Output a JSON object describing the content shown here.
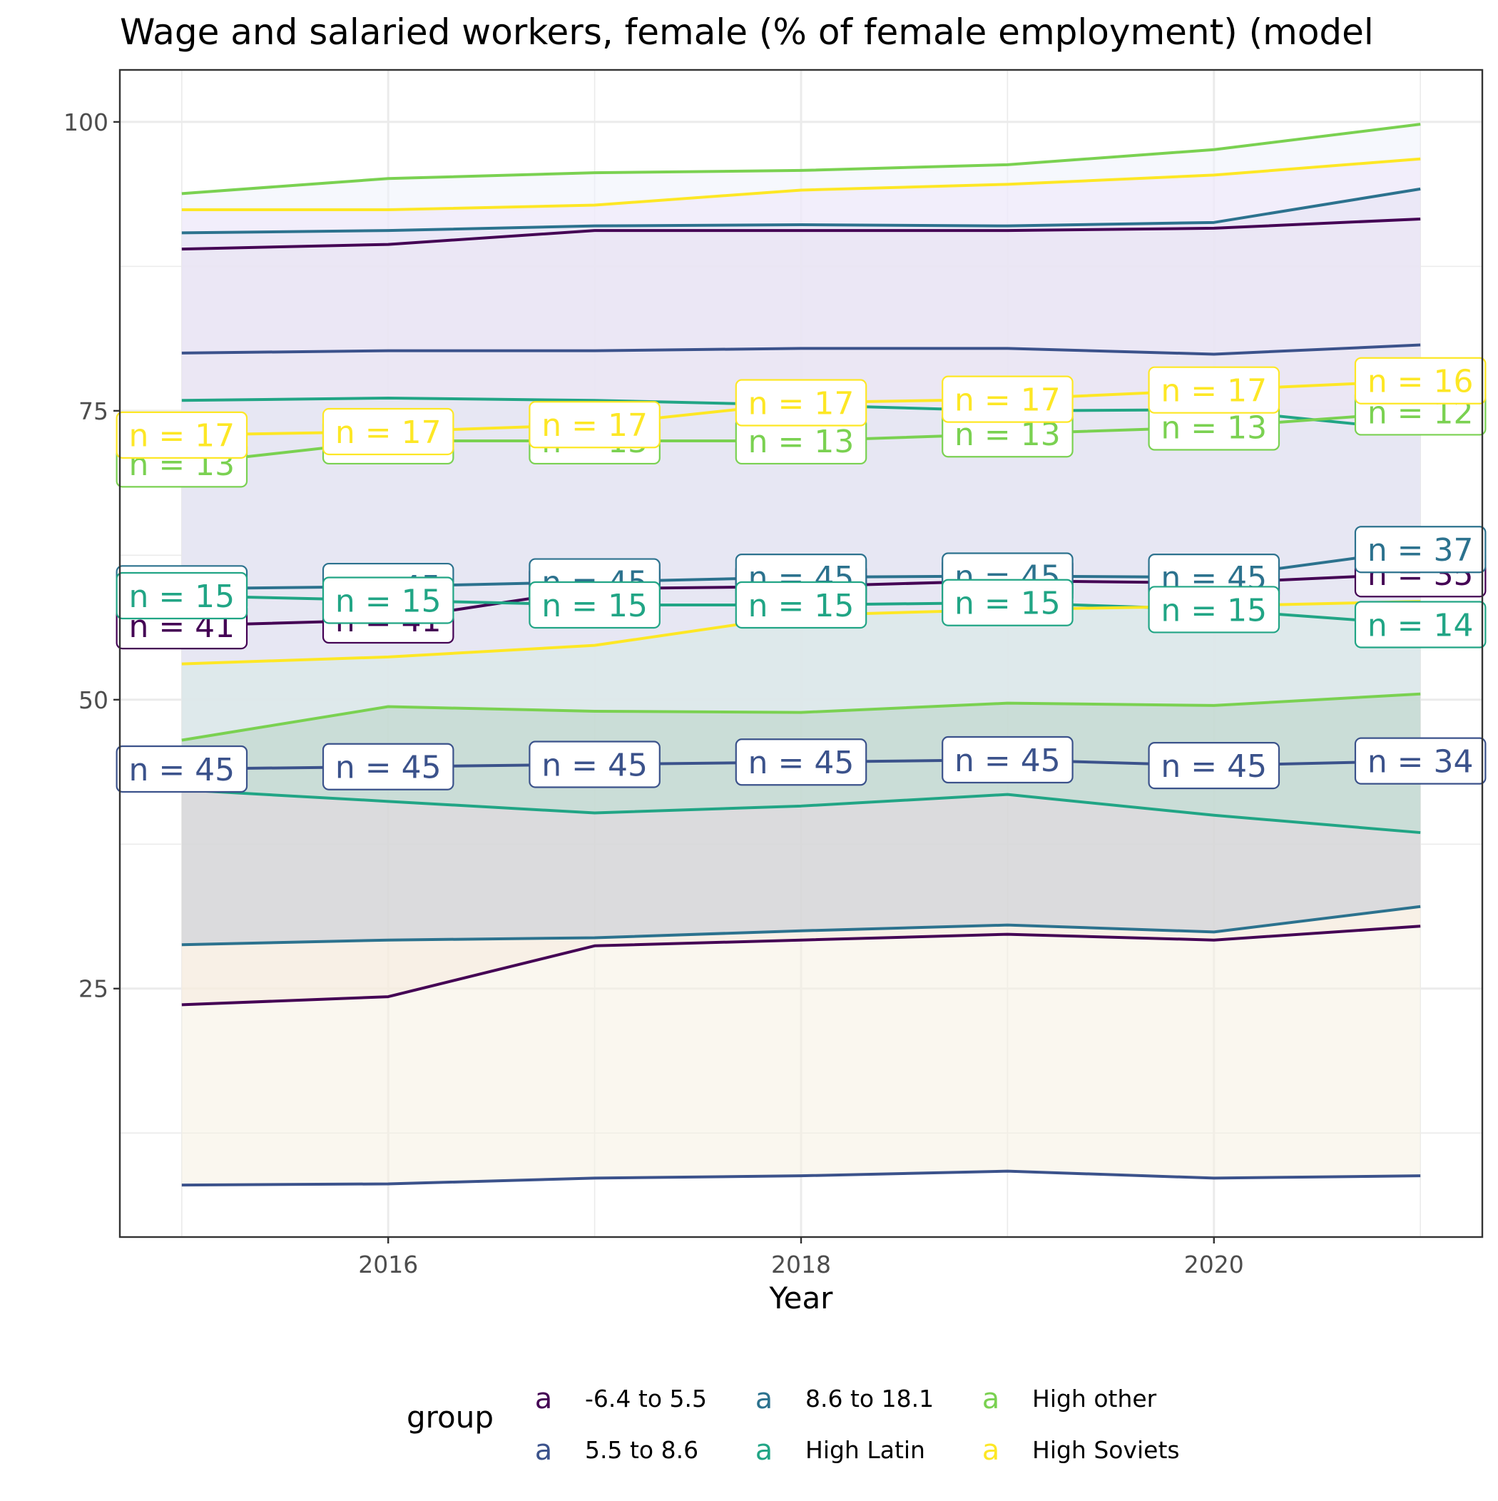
{
  "chart_data": {
    "type": "line",
    "title": "Wage and salaried workers, female (% of female employment) (model",
    "xlabel": "Year",
    "ylabel": "",
    "x": [
      2015,
      2016,
      2017,
      2018,
      2019,
      2020,
      2021
    ],
    "xlim": [
      2014.7,
      2021.3
    ],
    "ylim": [
      3.5,
      104.5
    ],
    "x_ticks": [
      2016,
      2018,
      2020
    ],
    "x_tick_labels": [
      "2016",
      "2018",
      "2020"
    ],
    "y_ticks": [
      25,
      50,
      75,
      100
    ],
    "y_tick_labels": [
      "25",
      "50",
      "75",
      "100"
    ],
    "grid": true,
    "legend": {
      "title": "group",
      "position": "bottom",
      "glyph": "a",
      "entries": [
        "-6.4 to 5.5",
        "5.5 to 8.6",
        "8.6 to 18.1",
        "High Latin",
        "High other",
        "High Soviets"
      ]
    },
    "series": [
      {
        "name": "-6.4 to 5.5",
        "color": "#440154",
        "fill": "#f7e3d9",
        "mean": [
          56.4,
          56.9,
          59.6,
          59.8,
          60.3,
          60.1,
          60.9
        ],
        "lower": [
          23.6,
          24.3,
          28.7,
          29.2,
          29.7,
          29.2,
          30.4
        ],
        "upper": [
          89.0,
          89.4,
          90.6,
          90.6,
          90.6,
          90.8,
          91.6
        ],
        "labels": [
          "n = 41",
          "n = 41",
          "n = 45",
          "n = 45",
          "n = 45",
          "n = 45",
          "n = 35"
        ]
      },
      {
        "name": "5.5 to 8.6",
        "color": "#3b528b",
        "fill": "#f5f1e2",
        "mean": [
          44.0,
          44.2,
          44.4,
          44.6,
          44.8,
          44.3,
          44.7
        ],
        "lower": [
          8.0,
          8.1,
          8.6,
          8.8,
          9.2,
          8.6,
          8.8
        ],
        "upper": [
          80.0,
          80.2,
          80.2,
          80.4,
          80.4,
          79.9,
          80.7
        ],
        "labels": [
          "n = 45",
          "n = 45",
          "n = 45",
          "n = 45",
          "n = 45",
          "n = 45",
          "n = 34"
        ]
      },
      {
        "name": "8.6 to 18.1",
        "color": "#2c728e",
        "fill": "#c3cbd5",
        "mean": [
          59.6,
          59.8,
          60.2,
          60.6,
          60.7,
          60.6,
          63.0
        ],
        "lower": [
          28.8,
          29.2,
          29.4,
          30.0,
          30.5,
          29.9,
          32.1
        ],
        "upper": [
          90.4,
          90.6,
          91.0,
          91.1,
          91.0,
          91.3,
          94.2
        ],
        "labels": [
          "n = 45",
          "n = 45",
          "n = 45",
          "n = 45",
          "n = 45",
          "n = 45",
          "n = 37"
        ]
      },
      {
        "name": "High Latin",
        "color": "#21a585",
        "fill": "#bcdfd2",
        "mean": [
          59.0,
          58.6,
          58.2,
          58.2,
          58.4,
          57.8,
          56.5
        ],
        "lower": [
          42.2,
          41.2,
          40.2,
          40.8,
          41.8,
          40.0,
          38.5
        ],
        "upper": [
          75.9,
          76.1,
          75.9,
          75.5,
          75.0,
          75.1,
          73.3
        ],
        "labels": [
          "n = 15",
          "n = 15",
          "n = 15",
          "n = 15",
          "n = 15",
          "n = 15",
          "n = 14"
        ]
      },
      {
        "name": "High other",
        "color": "#7ad151",
        "fill": "#eef3fb",
        "mean": [
          70.4,
          72.4,
          72.4,
          72.4,
          73.0,
          73.6,
          74.9
        ],
        "lower": [
          46.5,
          49.4,
          49.0,
          48.9,
          49.7,
          49.5,
          50.5
        ],
        "upper": [
          93.8,
          95.1,
          95.6,
          95.8,
          96.3,
          97.6,
          99.8
        ],
        "labels": [
          "n = 13",
          "n = 13",
          "n = 13",
          "n = 13",
          "n = 13",
          "n = 13",
          "n = 12"
        ]
      },
      {
        "name": "High Soviets",
        "color": "#fde725",
        "fill": "#efe6fa",
        "mean": [
          72.9,
          73.2,
          73.8,
          75.7,
          76.0,
          76.8,
          77.6
        ],
        "lower": [
          53.1,
          53.7,
          54.7,
          57.3,
          57.8,
          58.1,
          58.5
        ],
        "upper": [
          92.4,
          92.4,
          92.8,
          94.1,
          94.6,
          95.4,
          96.8
        ],
        "labels": [
          "n = 17",
          "n = 17",
          "n = 17",
          "n = 17",
          "n = 17",
          "n = 17",
          "n = 16"
        ]
      }
    ]
  }
}
